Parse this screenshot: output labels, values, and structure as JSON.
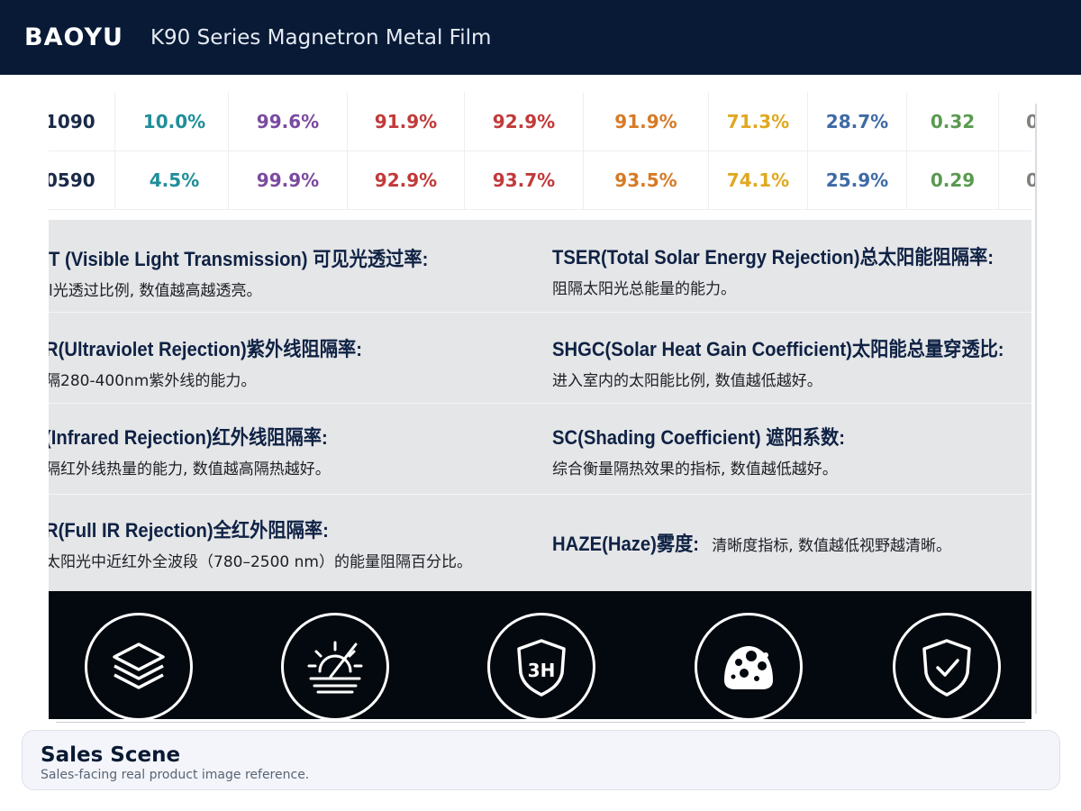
{
  "header": {
    "brand": "BAOYU",
    "title": "K90 Series Magnetron Metal Film"
  },
  "table": {
    "rows": [
      {
        "model": "1090",
        "values": [
          "10.0%",
          "99.6%",
          "91.9%",
          "92.9%",
          "91.9%",
          "71.3%",
          "28.7%",
          "0.32",
          "0"
        ]
      },
      {
        "model": "0590",
        "values": [
          "4.5%",
          "99.9%",
          "92.9%",
          "93.7%",
          "93.5%",
          "74.1%",
          "25.9%",
          "0.29",
          "0"
        ]
      }
    ],
    "colors": [
      "#1f8e99",
      "#7b4aa0",
      "#c23a3a",
      "#c23a3a",
      "#d77a25",
      "#e0a820",
      "#3f6aa6",
      "#5a9a50",
      "#808080"
    ]
  },
  "definitions": {
    "vlt": {
      "title": "T (Visible Light Transmission) 可见光透过率:",
      "desc": "l光透过比例, 数值越高越透亮。"
    },
    "tser": {
      "title": "TSER(Total Solar Energy Rejection)总太阳能阻隔率:",
      "desc": "阻隔太阳光总能量的能力。"
    },
    "uvr": {
      "title": "R(Ultraviolet Rejection)紫外线阻隔率:",
      "desc": "隔280-400nm紫外线的能力。"
    },
    "shgc": {
      "title": "SHGC(Solar Heat Gain Coefficient)太阳能总量穿透比:",
      "desc": "进入室内的太阳能比例, 数值越低越好。"
    },
    "irr": {
      "title": "(Infrared Rejection)红外线阻隔率:",
      "desc": "隔红外线热量的能力, 数值越高隔热越好。"
    },
    "sc": {
      "title": "SC(Shading Coefficient) 遮阳系数:",
      "desc": "综合衡量隔热效果的指标, 数值越低越好。"
    },
    "firr": {
      "title": "R(Full IR Rejection)全红外阻隔率:",
      "desc": "太阳光中近红外全波段（780–2500 nm）的能量阻隔百分比。"
    },
    "haze": {
      "title": "HAZE(Haze)雾度:",
      "desc": "清晰度指标, 数值越低视野越清晰。"
    }
  },
  "icons": [
    {
      "name": "layers-icon"
    },
    {
      "name": "sun-heat-icon"
    },
    {
      "name": "hardness-3h-shield-icon",
      "label": "3H"
    },
    {
      "name": "dirt-stain-icon"
    },
    {
      "name": "shield-check-icon"
    }
  ],
  "footer": {
    "title": "Sales Scene",
    "desc": "Sales-facing real product image reference."
  }
}
